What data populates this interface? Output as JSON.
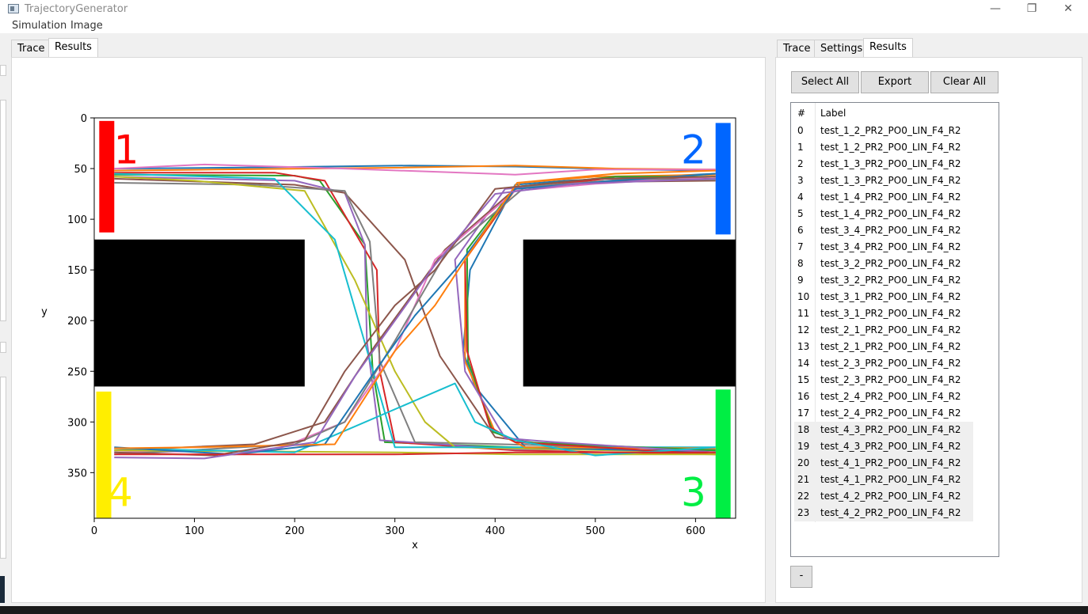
{
  "window": {
    "title": "TrajectoryGenerator"
  },
  "menu": [
    "Simulation",
    "Image"
  ],
  "left_tabs": [
    {
      "label": "Trace",
      "active": false
    },
    {
      "label": "Results",
      "active": true
    }
  ],
  "right_tabs": [
    {
      "label": "Trace",
      "active": false
    },
    {
      "label": "Settings",
      "active": false
    },
    {
      "label": "Results",
      "active": true
    }
  ],
  "buttons": {
    "select_all": "Select All",
    "export": "Export",
    "clear_all": "Clear All",
    "remove": "-"
  },
  "results_table": {
    "headers": [
      "#",
      "Label"
    ],
    "rows": [
      {
        "idx": "0",
        "label": "test_1_2_PR2_PO0_LIN_F4_R2"
      },
      {
        "idx": "1",
        "label": "test_1_2_PR2_PO0_LIN_F4_R2"
      },
      {
        "idx": "2",
        "label": "test_1_3_PR2_PO0_LIN_F4_R2"
      },
      {
        "idx": "3",
        "label": "test_1_3_PR2_PO0_LIN_F4_R2"
      },
      {
        "idx": "4",
        "label": "test_1_4_PR2_PO0_LIN_F4_R2"
      },
      {
        "idx": "5",
        "label": "test_1_4_PR2_PO0_LIN_F4_R2"
      },
      {
        "idx": "6",
        "label": "test_3_4_PR2_PO0_LIN_F4_R2"
      },
      {
        "idx": "7",
        "label": "test_3_4_PR2_PO0_LIN_F4_R2"
      },
      {
        "idx": "8",
        "label": "test_3_2_PR2_PO0_LIN_F4_R2"
      },
      {
        "idx": "9",
        "label": "test_3_2_PR2_PO0_LIN_F4_R2"
      },
      {
        "idx": "10",
        "label": "test_3_1_PR2_PO0_LIN_F4_R2"
      },
      {
        "idx": "11",
        "label": "test_3_1_PR2_PO0_LIN_F4_R2"
      },
      {
        "idx": "12",
        "label": "test_2_1_PR2_PO0_LIN_F4_R2"
      },
      {
        "idx": "13",
        "label": "test_2_1_PR2_PO0_LIN_F4_R2"
      },
      {
        "idx": "14",
        "label": "test_2_3_PR2_PO0_LIN_F4_R2"
      },
      {
        "idx": "15",
        "label": "test_2_3_PR2_PO0_LIN_F4_R2"
      },
      {
        "idx": "16",
        "label": "test_2_4_PR2_PO0_LIN_F4_R2"
      },
      {
        "idx": "17",
        "label": "test_2_4_PR2_PO0_LIN_F4_R2"
      },
      {
        "idx": "18",
        "label": "test_4_3_PR2_PO0_LIN_F4_R2",
        "selected": true
      },
      {
        "idx": "19",
        "label": "test_4_3_PR2_PO0_LIN_F4_R2",
        "selected": true
      },
      {
        "idx": "20",
        "label": "test_4_1_PR2_PO0_LIN_F4_R2",
        "selected": true
      },
      {
        "idx": "21",
        "label": "test_4_1_PR2_PO0_LIN_F4_R2",
        "selected": true
      },
      {
        "idx": "22",
        "label": "test_4_2_PR2_PO0_LIN_F4_R2",
        "selected": true
      },
      {
        "idx": "23",
        "label": "test_4_2_PR2_PO0_LIN_F4_R2",
        "selected": true
      }
    ]
  },
  "chart_data": {
    "type": "line",
    "xlabel": "x",
    "ylabel": "y",
    "xlim": [
      0,
      640
    ],
    "ylim": [
      395,
      0
    ],
    "xticks": [
      0,
      100,
      200,
      300,
      400,
      500,
      600
    ],
    "yticks": [
      0,
      50,
      100,
      150,
      200,
      250,
      300,
      350
    ],
    "obstacles": [
      {
        "x0": 0,
        "x1": 210,
        "y0": 120,
        "y1": 265,
        "color": "#000000"
      },
      {
        "x0": 428,
        "x1": 640,
        "y0": 120,
        "y1": 265,
        "color": "#000000"
      }
    ],
    "zones": [
      {
        "label": "1",
        "x0": 5,
        "x1": 20,
        "y0": 3,
        "y1": 113,
        "color": "#ff0000",
        "label_x": 32,
        "label_y": 45
      },
      {
        "label": "2",
        "x0": 620,
        "x1": 635,
        "y0": 5,
        "y1": 115,
        "color": "#0066ff",
        "label_x": 598,
        "label_y": 45
      },
      {
        "label": "3",
        "x0": 620,
        "x1": 635,
        "y0": 268,
        "y1": 395,
        "color": "#00ee44",
        "label_x": 598,
        "label_y": 383
      },
      {
        "label": "4",
        "x0": 2,
        "x1": 17,
        "y0": 270,
        "y1": 395,
        "color": "#ffee00",
        "label_x": 26,
        "label_y": 383
      }
    ],
    "series": [
      {
        "color": "#1f77b4",
        "points": [
          [
            20,
            50
          ],
          [
            150,
            49
          ],
          [
            315,
            47
          ],
          [
            420,
            48
          ],
          [
            540,
            51
          ],
          [
            620,
            52
          ]
        ]
      },
      {
        "color": "#ff7f0e",
        "points": [
          [
            20,
            52
          ],
          [
            120,
            51
          ],
          [
            310,
            49
          ],
          [
            420,
            47
          ],
          [
            520,
            50
          ],
          [
            620,
            51
          ]
        ]
      },
      {
        "color": "#e377c2",
        "points": [
          [
            20,
            50
          ],
          [
            110,
            46
          ],
          [
            250,
            50
          ],
          [
            420,
            56
          ],
          [
            500,
            51
          ],
          [
            620,
            51
          ]
        ]
      },
      {
        "color": "#2ca02c",
        "points": [
          [
            20,
            56
          ],
          [
            200,
            57
          ],
          [
            225,
            62
          ],
          [
            270,
            125
          ],
          [
            278,
            250
          ],
          [
            290,
            320
          ],
          [
            420,
            325
          ],
          [
            620,
            330
          ]
        ]
      },
      {
        "color": "#d62728",
        "points": [
          [
            20,
            54
          ],
          [
            180,
            54
          ],
          [
            230,
            62
          ],
          [
            282,
            150
          ],
          [
            285,
            250
          ],
          [
            300,
            320
          ],
          [
            420,
            328
          ],
          [
            620,
            332
          ]
        ]
      },
      {
        "color": "#9467bd",
        "points": [
          [
            20,
            58
          ],
          [
            200,
            62
          ],
          [
            250,
            74
          ],
          [
            270,
            125
          ],
          [
            272,
            220
          ],
          [
            285,
            318
          ],
          [
            420,
            327
          ],
          [
            620,
            328
          ]
        ]
      },
      {
        "color": "#8c564b",
        "points": [
          [
            20,
            60
          ],
          [
            200,
            66
          ],
          [
            250,
            74
          ],
          [
            310,
            140
          ],
          [
            345,
            235
          ],
          [
            400,
            315
          ],
          [
            470,
            325
          ],
          [
            620,
            330
          ]
        ]
      },
      {
        "color": "#7f7f7f",
        "points": [
          [
            20,
            64
          ],
          [
            160,
            66
          ],
          [
            250,
            72
          ],
          [
            275,
            122
          ],
          [
            285,
            240
          ],
          [
            320,
            320
          ],
          [
            620,
            327
          ]
        ]
      },
      {
        "color": "#bcbd22",
        "points": [
          [
            20,
            58
          ],
          [
            100,
            62
          ],
          [
            210,
            72
          ],
          [
            260,
            160
          ],
          [
            300,
            250
          ],
          [
            330,
            300
          ],
          [
            360,
            325
          ],
          [
            620,
            330
          ]
        ]
      },
      {
        "color": "#17becf",
        "points": [
          [
            20,
            55
          ],
          [
            180,
            60
          ],
          [
            240,
            120
          ],
          [
            268,
            215
          ],
          [
            300,
            325
          ],
          [
            620,
            325
          ]
        ]
      },
      {
        "color": "#1f77b4",
        "points": [
          [
            620,
            55
          ],
          [
            470,
            62
          ],
          [
            420,
            66
          ],
          [
            375,
            150
          ],
          [
            368,
            230
          ],
          [
            380,
            265
          ],
          [
            430,
            325
          ],
          [
            620,
            330
          ]
        ]
      },
      {
        "color": "#ff7f0e",
        "points": [
          [
            620,
            56
          ],
          [
            500,
            58
          ],
          [
            425,
            64
          ],
          [
            370,
            140
          ],
          [
            370,
            240
          ],
          [
            400,
            310
          ],
          [
            430,
            325
          ],
          [
            620,
            326
          ]
        ]
      },
      {
        "color": "#2ca02c",
        "points": [
          [
            620,
            58
          ],
          [
            520,
            58
          ],
          [
            420,
            68
          ],
          [
            372,
            130
          ],
          [
            373,
            240
          ],
          [
            398,
            310
          ],
          [
            428,
            320
          ],
          [
            620,
            328
          ]
        ]
      },
      {
        "color": "#d62728",
        "points": [
          [
            620,
            60
          ],
          [
            510,
            60
          ],
          [
            420,
            70
          ],
          [
            370,
            140
          ],
          [
            372,
            230
          ],
          [
            395,
            305
          ],
          [
            420,
            320
          ],
          [
            620,
            332
          ]
        ]
      },
      {
        "color": "#9467bd",
        "points": [
          [
            620,
            60
          ],
          [
            520,
            62
          ],
          [
            410,
            70
          ],
          [
            360,
            140
          ],
          [
            370,
            250
          ],
          [
            410,
            316
          ],
          [
            460,
            320
          ],
          [
            620,
            330
          ]
        ]
      },
      {
        "color": "#8c564b",
        "points": [
          [
            620,
            62
          ],
          [
            520,
            63
          ],
          [
            420,
            70
          ],
          [
            350,
            130
          ],
          [
            280,
            225
          ],
          [
            230,
            300
          ],
          [
            160,
            322
          ],
          [
            20,
            328
          ]
        ]
      },
      {
        "color": "#e377c2",
        "points": [
          [
            620,
            58
          ],
          [
            500,
            65
          ],
          [
            420,
            72
          ],
          [
            340,
            140
          ],
          [
            300,
            230
          ],
          [
            250,
            300
          ],
          [
            180,
            328
          ],
          [
            20,
            330
          ]
        ]
      },
      {
        "color": "#7f7f7f",
        "points": [
          [
            620,
            61
          ],
          [
            540,
            60
          ],
          [
            430,
            68
          ],
          [
            350,
            135
          ],
          [
            300,
            220
          ],
          [
            250,
            300
          ],
          [
            200,
            322
          ],
          [
            20,
            332
          ]
        ]
      },
      {
        "color": "#bcbd22",
        "points": [
          [
            20,
            328
          ],
          [
            300,
            330
          ],
          [
            420,
            332
          ],
          [
            620,
            332
          ]
        ]
      },
      {
        "color": "#17becf",
        "points": [
          [
            20,
            326
          ],
          [
            200,
            330
          ],
          [
            360,
            262
          ],
          [
            380,
            300
          ],
          [
            420,
            318
          ],
          [
            500,
            333
          ],
          [
            620,
            325
          ]
        ]
      },
      {
        "color": "#1f77b4",
        "points": [
          [
            20,
            325
          ],
          [
            140,
            332
          ],
          [
            230,
            322
          ],
          [
            280,
            250
          ],
          [
            320,
            195
          ],
          [
            360,
            150
          ],
          [
            420,
            70
          ],
          [
            520,
            62
          ],
          [
            620,
            55
          ]
        ]
      },
      {
        "color": "#ff7f0e",
        "points": [
          [
            20,
            326
          ],
          [
            100,
            325
          ],
          [
            240,
            322
          ],
          [
            300,
            230
          ],
          [
            340,
            185
          ],
          [
            370,
            140
          ],
          [
            422,
            64
          ],
          [
            520,
            55
          ],
          [
            620,
            52
          ]
        ]
      },
      {
        "color": "#8c564b",
        "points": [
          [
            20,
            330
          ],
          [
            120,
            333
          ],
          [
            210,
            318
          ],
          [
            250,
            250
          ],
          [
            300,
            185
          ],
          [
            340,
            150
          ],
          [
            400,
            70
          ],
          [
            500,
            60
          ],
          [
            620,
            58
          ]
        ]
      },
      {
        "color": "#d62728",
        "points": [
          [
            20,
            332
          ],
          [
            300,
            332
          ],
          [
            420,
            330
          ],
          [
            620,
            330
          ]
        ]
      },
      {
        "color": "#9467bd",
        "points": [
          [
            20,
            335
          ],
          [
            110,
            336
          ],
          [
            220,
            320
          ],
          [
            260,
            255
          ],
          [
            300,
            200
          ],
          [
            340,
            145
          ],
          [
            400,
            75
          ],
          [
            480,
            65
          ],
          [
            620,
            60
          ]
        ]
      }
    ]
  }
}
